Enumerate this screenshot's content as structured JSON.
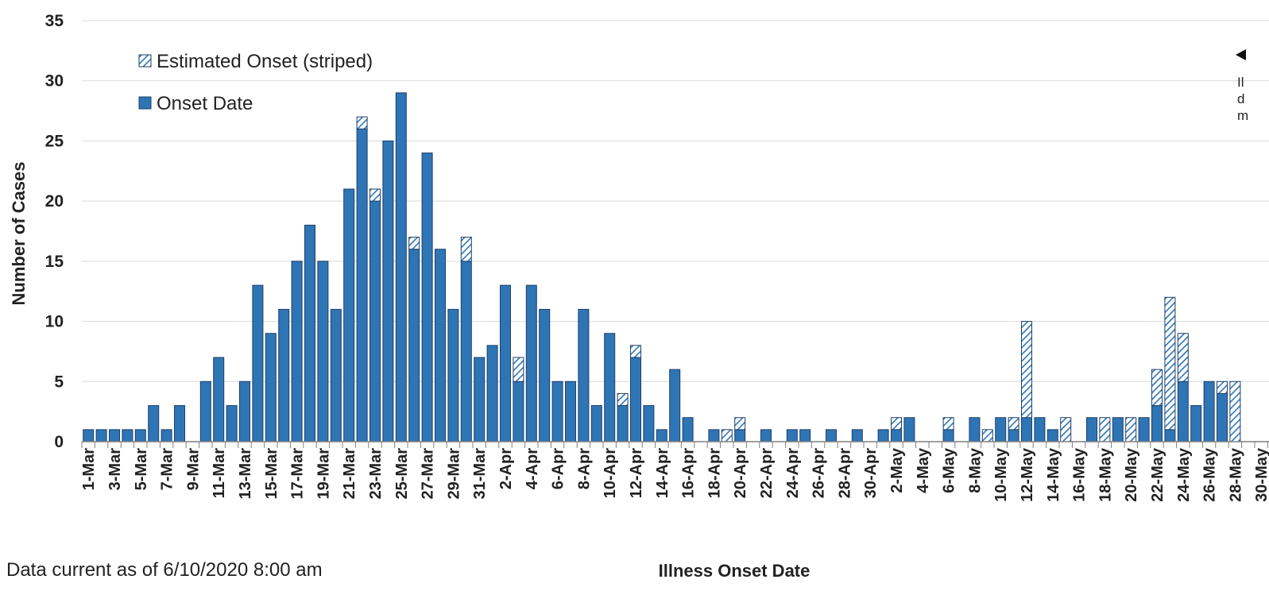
{
  "footnote": "Data current as of 6/10/2020 8:00 am",
  "side_note": [
    "Il",
    "d",
    "m"
  ],
  "colors": {
    "bar": "#2e75b6",
    "stroke": "#1f3f66",
    "grid": "#d9d9d9",
    "axis": "#808080",
    "stripe_bg": "#ffffff"
  },
  "chart_data": {
    "type": "bar",
    "stacked": true,
    "xlabel": "Illness Onset Date",
    "ylabel": "Number of Cases",
    "ylim": [
      0,
      35
    ],
    "yticks": [
      0,
      5,
      10,
      15,
      20,
      25,
      30,
      35
    ],
    "grid": true,
    "legend_position": "top-left",
    "legend": [
      {
        "name": "Estimated Onset (striped)",
        "pattern": "striped"
      },
      {
        "name": "Onset Date",
        "pattern": "solid"
      }
    ],
    "categories": [
      "1-Mar",
      "2-Mar",
      "3-Mar",
      "4-Mar",
      "5-Mar",
      "6-Mar",
      "7-Mar",
      "8-Mar",
      "9-Mar",
      "10-Mar",
      "11-Mar",
      "12-Mar",
      "13-Mar",
      "14-Mar",
      "15-Mar",
      "16-Mar",
      "17-Mar",
      "18-Mar",
      "19-Mar",
      "20-Mar",
      "21-Mar",
      "22-Mar",
      "23-Mar",
      "24-Mar",
      "25-Mar",
      "26-Mar",
      "27-Mar",
      "28-Mar",
      "29-Mar",
      "30-Mar",
      "31-Mar",
      "1-Apr",
      "2-Apr",
      "3-Apr",
      "4-Apr",
      "5-Apr",
      "6-Apr",
      "7-Apr",
      "8-Apr",
      "9-Apr",
      "10-Apr",
      "11-Apr",
      "12-Apr",
      "13-Apr",
      "14-Apr",
      "15-Apr",
      "16-Apr",
      "17-Apr",
      "18-Apr",
      "19-Apr",
      "20-Apr",
      "21-Apr",
      "22-Apr",
      "23-Apr",
      "24-Apr",
      "25-Apr",
      "26-Apr",
      "27-Apr",
      "28-Apr",
      "29-Apr",
      "30-Apr",
      "1-May",
      "2-May",
      "3-May",
      "4-May",
      "5-May",
      "6-May",
      "7-May",
      "8-May",
      "9-May",
      "10-May",
      "11-May",
      "12-May",
      "13-May",
      "14-May",
      "15-May",
      "16-May",
      "17-May",
      "18-May",
      "19-May",
      "20-May",
      "21-May",
      "22-May",
      "23-May",
      "24-May",
      "25-May",
      "26-May",
      "27-May",
      "28-May",
      "29-May",
      "30-May"
    ],
    "tick_labels": [
      "1-Mar",
      "3-Mar",
      "5-Mar",
      "7-Mar",
      "9-Mar",
      "11-Mar",
      "13-Mar",
      "15-Mar",
      "17-Mar",
      "19-Mar",
      "21-Mar",
      "23-Mar",
      "25-Mar",
      "27-Mar",
      "29-Mar",
      "31-Mar",
      "2-Apr",
      "4-Apr",
      "6-Apr",
      "8-Apr",
      "10-Apr",
      "12-Apr",
      "14-Apr",
      "16-Apr",
      "18-Apr",
      "20-Apr",
      "22-Apr",
      "24-Apr",
      "26-Apr",
      "28-Apr",
      "30-Apr",
      "2-May",
      "4-May",
      "6-May",
      "8-May",
      "10-May",
      "12-May",
      "14-May",
      "16-May",
      "18-May",
      "20-May",
      "22-May",
      "24-May",
      "26-May",
      "28-May",
      "30-May"
    ],
    "series": [
      {
        "name": "Onset Date",
        "values": [
          1,
          1,
          1,
          1,
          1,
          3,
          1,
          3,
          0,
          5,
          7,
          3,
          5,
          13,
          9,
          11,
          15,
          18,
          15,
          11,
          21,
          26,
          20,
          25,
          29,
          16,
          24,
          16,
          11,
          15,
          7,
          8,
          13,
          5,
          13,
          11,
          5,
          5,
          11,
          3,
          9,
          3,
          7,
          3,
          1,
          6,
          2,
          0,
          1,
          0,
          1,
          0,
          1,
          0,
          1,
          1,
          0,
          1,
          0,
          1,
          0,
          1,
          1,
          2,
          0,
          0,
          1,
          0,
          2,
          0,
          2,
          1,
          2,
          2,
          1,
          0,
          0,
          2,
          0,
          2,
          0,
          2,
          3,
          1,
          5,
          3,
          5,
          4,
          0,
          0,
          0
        ]
      },
      {
        "name": "Estimated Onset (striped)",
        "values": [
          0,
          0,
          0,
          0,
          0,
          0,
          0,
          0,
          0,
          0,
          0,
          0,
          0,
          0,
          0,
          0,
          0,
          0,
          0,
          0,
          0,
          1,
          1,
          0,
          0,
          1,
          0,
          0,
          0,
          2,
          0,
          0,
          0,
          2,
          0,
          0,
          0,
          0,
          0,
          0,
          0,
          1,
          1,
          0,
          0,
          0,
          0,
          0,
          0,
          1,
          1,
          0,
          0,
          0,
          0,
          0,
          0,
          0,
          0,
          0,
          0,
          0,
          1,
          0,
          0,
          0,
          1,
          0,
          0,
          1,
          0,
          1,
          8,
          0,
          0,
          2,
          0,
          0,
          2,
          0,
          2,
          0,
          3,
          11,
          4,
          0,
          0,
          1,
          5,
          0,
          0
        ]
      }
    ]
  }
}
